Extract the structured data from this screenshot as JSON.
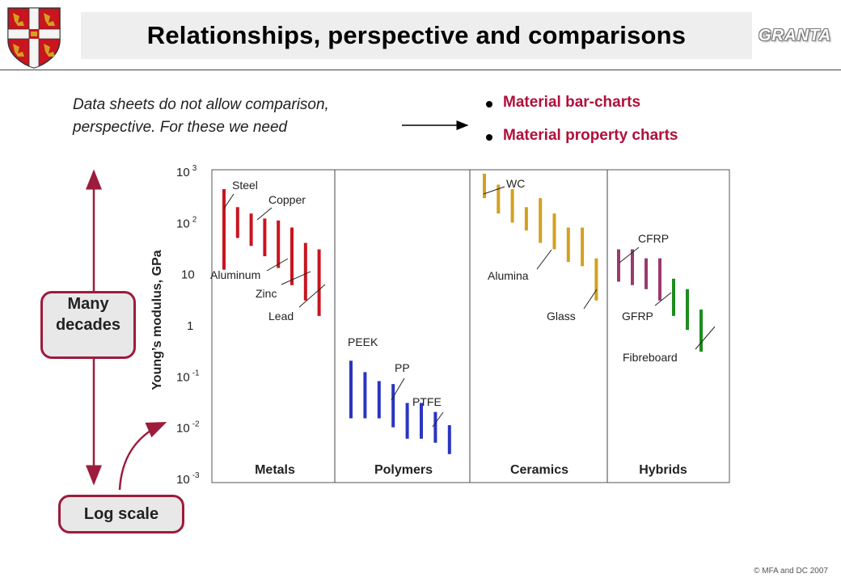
{
  "slide": {
    "title": "Relationships, perspective and comparisons",
    "brand": "GRANTA",
    "footer": "© MFA and DC 2007"
  },
  "intro": {
    "line1": "Data sheets do not allow comparison,",
    "line2": "perspective.  For these we need"
  },
  "bullets": [
    "Material bar-charts",
    "Material property charts"
  ],
  "callouts": {
    "decades_line1": "Many",
    "decades_line2": "decades",
    "log_scale": "Log scale"
  },
  "colors": {
    "accent": "#b0103a",
    "metals": "#c8151e",
    "polymers": "#2a35c0",
    "ceramics": "#d4a020",
    "hybrids_composite": "#9a3a6e",
    "hybrids_natural": "#1e8c1e",
    "pill_border": "#9c1c3c"
  },
  "chart_data": {
    "type": "bar",
    "scale": "log",
    "ylabel": "Young’s modulus, GPa",
    "ylim": [
      0.001,
      1000
    ],
    "yticks": [
      {
        "value": 1000,
        "base": "10",
        "exp": "3"
      },
      {
        "value": 100,
        "base": "10",
        "exp": "2"
      },
      {
        "value": 10,
        "base": "10",
        "exp": ""
      },
      {
        "value": 1,
        "base": "1",
        "exp": ""
      },
      {
        "value": 0.1,
        "base": "10",
        "exp": "-1"
      },
      {
        "value": 0.01,
        "base": "10",
        "exp": "-2"
      },
      {
        "value": 0.001,
        "base": "10",
        "exp": "-3"
      }
    ],
    "families": [
      {
        "name": "Metals",
        "color_key": "metals",
        "bars": [
          {
            "low": 12,
            "high": 450,
            "label": "Steel"
          },
          {
            "low": 50,
            "high": 200
          },
          {
            "low": 35,
            "high": 150,
            "label": "Copper"
          },
          {
            "low": 22,
            "high": 120
          },
          {
            "low": 13,
            "high": 110,
            "label": "Aluminum"
          },
          {
            "low": 6,
            "high": 80,
            "label": "Zinc"
          },
          {
            "low": 3,
            "high": 40
          },
          {
            "low": 1.5,
            "high": 30,
            "label": "Lead"
          }
        ]
      },
      {
        "name": "Polymers",
        "color_key": "polymers",
        "bars": [
          {
            "low": 0.015,
            "high": 0.2,
            "label": "PEEK"
          },
          {
            "low": 0.015,
            "high": 0.12
          },
          {
            "low": 0.015,
            "high": 0.08
          },
          {
            "low": 0.01,
            "high": 0.07,
            "label": "PP"
          },
          {
            "low": 0.006,
            "high": 0.03
          },
          {
            "low": 0.006,
            "high": 0.03
          },
          {
            "low": 0.005,
            "high": 0.02,
            "label": "PTFE"
          },
          {
            "low": 0.003,
            "high": 0.011
          }
        ]
      },
      {
        "name": "Ceramics",
        "color_key": "ceramics",
        "bars": [
          {
            "low": 300,
            "high": 900,
            "label": "WC"
          },
          {
            "low": 150,
            "high": 550
          },
          {
            "low": 100,
            "high": 450
          },
          {
            "low": 70,
            "high": 200
          },
          {
            "low": 40,
            "high": 300,
            "label": "Alumina"
          },
          {
            "low": 30,
            "high": 150
          },
          {
            "low": 17,
            "high": 80
          },
          {
            "low": 14,
            "high": 80
          },
          {
            "low": 3,
            "high": 20,
            "label": "Glass"
          }
        ]
      },
      {
        "name": "Hybrids",
        "bars": [
          {
            "low": 7,
            "high": 30,
            "label": "CFRP",
            "color_key": "hybrids_composite"
          },
          {
            "low": 6,
            "high": 30,
            "color_key": "hybrids_composite"
          },
          {
            "low": 5,
            "high": 20,
            "color_key": "hybrids_composite"
          },
          {
            "low": 3,
            "high": 20,
            "label": "GFRP",
            "color_key": "hybrids_composite"
          },
          {
            "low": 1.5,
            "high": 8,
            "color_key": "hybrids_natural"
          },
          {
            "low": 0.8,
            "high": 5,
            "color_key": "hybrids_natural"
          },
          {
            "low": 0.3,
            "high": 2,
            "label": "Fibreboard",
            "color_key": "hybrids_natural"
          }
        ]
      }
    ]
  }
}
